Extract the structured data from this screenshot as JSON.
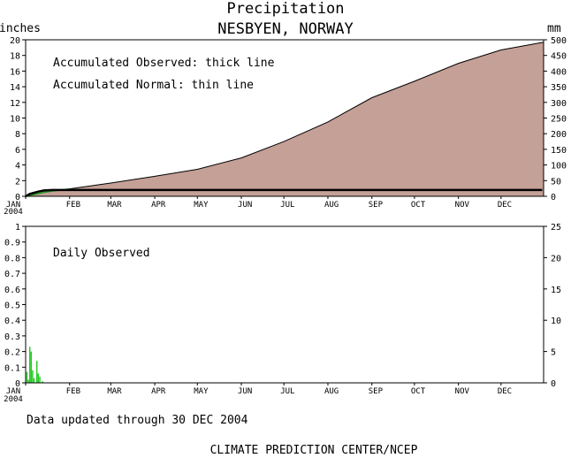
{
  "header": {
    "title": "Precipitation",
    "subtitle": "NESBYEN, NORWAY"
  },
  "footer": {
    "updated": "Data updated through 30 DEC 2004",
    "credit": "CLIMATE PREDICTION CENTER/NCEP"
  },
  "colors": {
    "normal_fill": "#c4a097",
    "daily_bar": "#22cc22",
    "observed_line": "#000000",
    "early_normal_line": "#1a9a1a"
  },
  "chart_data": [
    {
      "type": "area",
      "id": "accumulated",
      "ylabel_left": "inches",
      "ylabel_right": "mm",
      "ylim": [
        0,
        20
      ],
      "yticks": [
        0,
        2,
        4,
        6,
        8,
        10,
        12,
        14,
        16,
        18,
        20
      ],
      "ylim_right": [
        0,
        500
      ],
      "yticks_right": [
        0,
        50,
        100,
        150,
        200,
        250,
        300,
        350,
        400,
        450,
        500
      ],
      "months": [
        "JAN",
        "FEB",
        "MAR",
        "APR",
        "MAY",
        "JUN",
        "JUL",
        "AUG",
        "SEP",
        "OCT",
        "NOV",
        "DEC"
      ],
      "year_label": "2004",
      "legend_lines": [
        "Accumulated Observed: thick line",
        "Accumulated Normal: thin line"
      ],
      "series": [
        {
          "name": "Accumulated Normal",
          "x": [
            "2004-01-01",
            "2004-01-15",
            "2004-02-01",
            "2004-03-01",
            "2004-04-01",
            "2004-05-01",
            "2004-06-01",
            "2004-07-01",
            "2004-08-01",
            "2004-09-01",
            "2004-10-01",
            "2004-11-01",
            "2004-12-01",
            "2004-12-31"
          ],
          "y": [
            0.0,
            0.55,
            0.95,
            1.7,
            2.55,
            3.45,
            4.9,
            7.0,
            9.5,
            12.6,
            14.7,
            17.0,
            18.7,
            19.7
          ]
        },
        {
          "name": "Accumulated Observed",
          "x": [
            "2004-01-01",
            "2004-01-04",
            "2004-01-10",
            "2004-01-14",
            "2004-01-20",
            "2004-12-30"
          ],
          "y": [
            0.0,
            0.3,
            0.6,
            0.75,
            0.8,
            0.8
          ]
        }
      ]
    },
    {
      "type": "bar",
      "id": "daily",
      "ylim": [
        0,
        1
      ],
      "yticks": [
        0,
        0.1,
        0.2,
        0.3,
        0.4,
        0.5,
        0.6,
        0.7,
        0.8,
        0.9,
        1
      ],
      "ylim_right": [
        0,
        25
      ],
      "yticks_right": [
        0,
        5,
        10,
        15,
        20,
        25
      ],
      "months": [
        "JAN",
        "FEB",
        "MAR",
        "APR",
        "MAY",
        "JUN",
        "JUL",
        "AUG",
        "SEP",
        "OCT",
        "NOV",
        "DEC"
      ],
      "year_label": "2004",
      "annotation": "Daily Observed",
      "x": [
        "2004-01-02",
        "2004-01-03",
        "2004-01-04",
        "2004-01-05",
        "2004-01-06",
        "2004-01-07",
        "2004-01-09",
        "2004-01-10",
        "2004-01-11",
        "2004-01-13"
      ],
      "values": [
        0.07,
        0.02,
        0.23,
        0.2,
        0.08,
        0.03,
        0.14,
        0.06,
        0.04,
        0.01
      ]
    }
  ]
}
